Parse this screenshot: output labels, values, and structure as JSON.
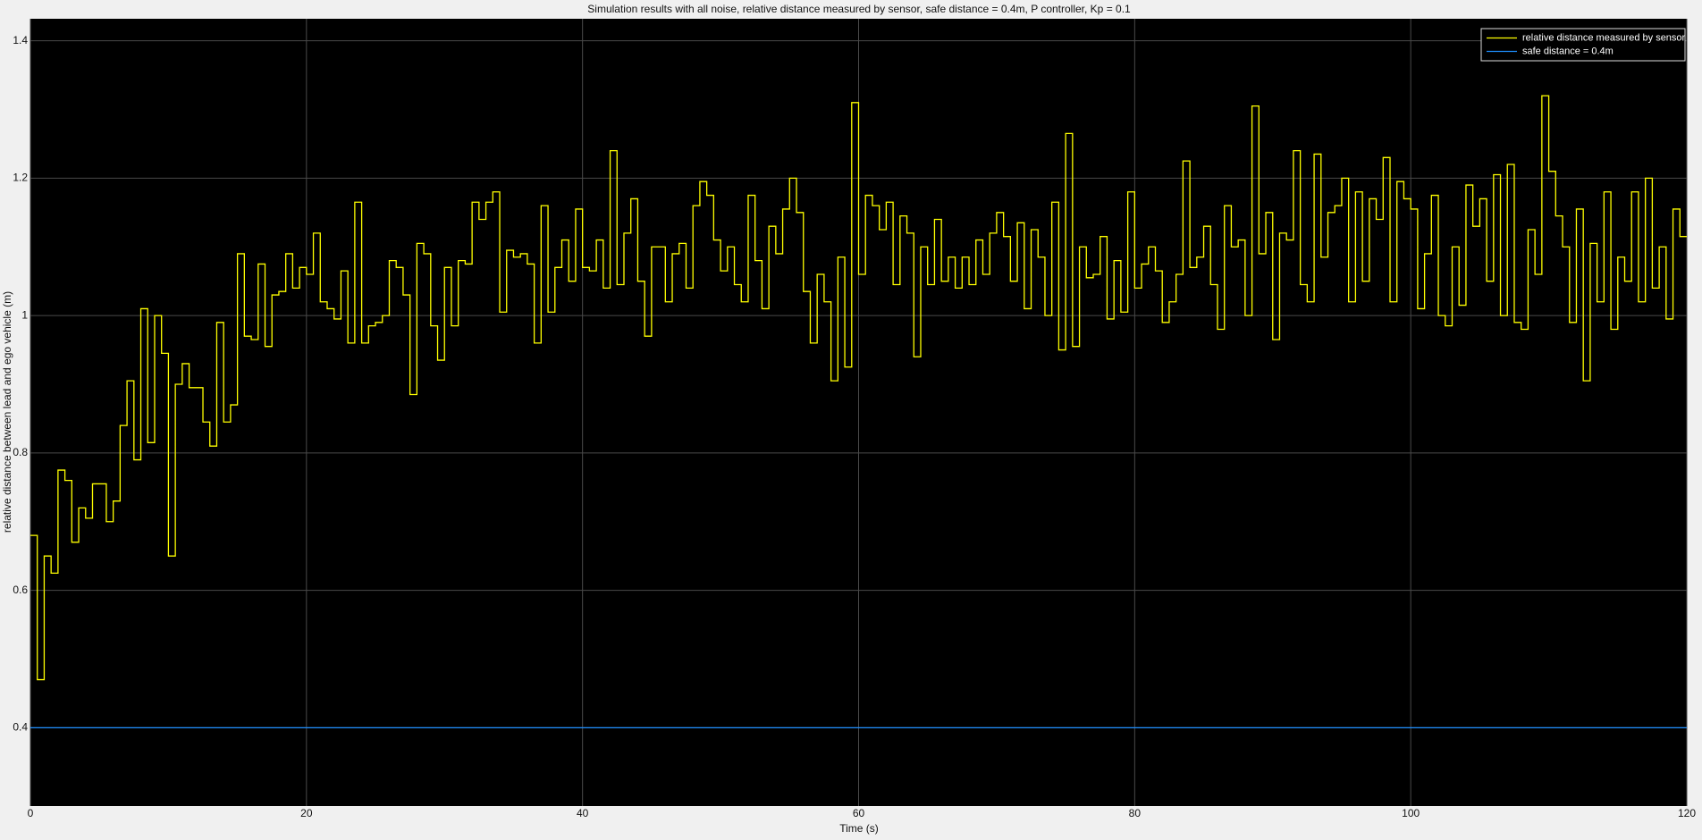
{
  "chart_data": {
    "type": "line",
    "title": "Simulation results with all noise, relative distance measured by sensor, safe distance = 0.4m, P controller, Kp = 0.1",
    "xlabel": "Time (s)",
    "ylabel": "relative distance between lead and ego vehicle (m)",
    "xlim": [
      0,
      120
    ],
    "ylim": [
      0.286,
      1.432
    ],
    "xticks": [
      0,
      20,
      40,
      60,
      80,
      100,
      120
    ],
    "yticks": [
      0.4,
      0.6,
      0.8,
      1,
      1.2,
      1.4
    ],
    "grid": true,
    "legend": "upper right",
    "drawstyle": "steps-post",
    "series": [
      {
        "name": "relative distance measured by sensor",
        "color": "#ffff00",
        "x": [
          0,
          0.5,
          1,
          1.5,
          2,
          2.5,
          3,
          3.5,
          4,
          4.5,
          5,
          5.5,
          6,
          6.5,
          7,
          7.5,
          8,
          8.5,
          9,
          9.5,
          10,
          10.5,
          11,
          11.5,
          12,
          12.5,
          13,
          13.5,
          14,
          14.5,
          15,
          15.5,
          16,
          16.5,
          17,
          17.5,
          18,
          18.5,
          19,
          19.5,
          20,
          20.5,
          21,
          21.5,
          22,
          22.5,
          23,
          23.5,
          24,
          24.5,
          25,
          25.5,
          26,
          26.5,
          27,
          27.5,
          28,
          28.5,
          29,
          29.5,
          30,
          30.5,
          31,
          31.5,
          32,
          32.5,
          33,
          33.5,
          34,
          34.5,
          35,
          35.5,
          36,
          36.5,
          37,
          37.5,
          38,
          38.5,
          39,
          39.5,
          40,
          40.5,
          41,
          41.5,
          42,
          42.5,
          43,
          43.5,
          44,
          44.5,
          45,
          45.5,
          46,
          46.5,
          47,
          47.5,
          48,
          48.5,
          49,
          49.5,
          50,
          50.5,
          51,
          51.5,
          52,
          52.5,
          53,
          53.5,
          54,
          54.5,
          55,
          55.5,
          56,
          56.5,
          57,
          57.5,
          58,
          58.5,
          59,
          59.5,
          60,
          60.5,
          61,
          61.5,
          62,
          62.5,
          63,
          63.5,
          64,
          64.5,
          65,
          65.5,
          66,
          66.5,
          67,
          67.5,
          68,
          68.5,
          69,
          69.5,
          70,
          70.5,
          71,
          71.5,
          72,
          72.5,
          73,
          73.5,
          74,
          74.5,
          75,
          75.5,
          76,
          76.5,
          77,
          77.5,
          78,
          78.5,
          79,
          79.5,
          80,
          80.5,
          81,
          81.5,
          82,
          82.5,
          83,
          83.5,
          84,
          84.5,
          85,
          85.5,
          86,
          86.5,
          87,
          87.5,
          88,
          88.5,
          89,
          89.5,
          90,
          90.5,
          91,
          91.5,
          92,
          92.5,
          93,
          93.5,
          94,
          94.5,
          95,
          95.5,
          96,
          96.5,
          97,
          97.5,
          98,
          98.5,
          99,
          99.5,
          100,
          100.5,
          101,
          101.5,
          102,
          102.5,
          103,
          103.5,
          104,
          104.5,
          105,
          105.5,
          106,
          106.5,
          107,
          107.5,
          108,
          108.5,
          109,
          109.5,
          110,
          110.5,
          111,
          111.5,
          112,
          112.5,
          113,
          113.5,
          114,
          114.5,
          115,
          115.5,
          116,
          116.5,
          117,
          117.5,
          118,
          118.5,
          119,
          119.5
        ],
        "values": [
          0.68,
          0.47,
          0.65,
          0.625,
          0.775,
          0.76,
          0.67,
          0.72,
          0.705,
          0.755,
          0.755,
          0.7,
          0.73,
          0.84,
          0.905,
          0.79,
          1.01,
          0.815,
          1.0,
          0.945,
          0.65,
          0.9,
          0.93,
          0.895,
          0.895,
          0.845,
          0.81,
          0.99,
          0.845,
          0.87,
          1.09,
          0.97,
          0.965,
          1.075,
          0.955,
          1.03,
          1.035,
          1.09,
          1.04,
          1.07,
          1.06,
          1.12,
          1.02,
          1.01,
          0.995,
          1.065,
          0.96,
          1.165,
          0.96,
          0.985,
          0.99,
          1.0,
          1.08,
          1.07,
          1.03,
          0.885,
          1.105,
          1.09,
          0.985,
          0.935,
          1.07,
          0.985,
          1.08,
          1.075,
          1.165,
          1.14,
          1.165,
          1.18,
          1.005,
          1.095,
          1.085,
          1.09,
          1.075,
          0.96,
          1.16,
          1.005,
          1.07,
          1.11,
          1.05,
          1.155,
          1.07,
          1.065,
          1.11,
          1.04,
          1.24,
          1.045,
          1.12,
          1.17,
          1.05,
          0.97,
          1.1,
          1.1,
          1.02,
          1.09,
          1.105,
          1.04,
          1.16,
          1.195,
          1.175,
          1.11,
          1.065,
          1.1,
          1.045,
          1.02,
          1.175,
          1.08,
          1.01,
          1.13,
          1.09,
          1.155,
          1.2,
          1.15,
          1.035,
          0.96,
          1.06,
          1.02,
          0.905,
          1.085,
          0.925,
          1.31,
          1.06,
          1.175,
          1.16,
          1.125,
          1.165,
          1.045,
          1.145,
          1.12,
          0.94,
          1.1,
          1.045,
          1.14,
          1.05,
          1.085,
          1.04,
          1.085,
          1.045,
          1.11,
          1.06,
          1.12,
          1.15,
          1.115,
          1.05,
          1.135,
          1.01,
          1.125,
          1.085,
          1.0,
          1.165,
          0.95,
          1.265,
          0.955,
          1.1,
          1.055,
          1.06,
          1.115,
          0.995,
          1.08,
          1.005,
          1.18,
          1.04,
          1.075,
          1.1,
          1.065,
          0.99,
          1.02,
          1.06,
          1.225,
          1.07,
          1.085,
          1.13,
          1.045,
          0.98,
          1.16,
          1.1,
          1.11,
          1.0,
          1.305,
          1.09,
          1.15,
          0.965,
          1.12,
          1.11,
          1.24,
          1.045,
          1.02,
          1.235,
          1.085,
          1.15,
          1.16,
          1.2,
          1.02,
          1.18,
          1.05,
          1.17,
          1.14,
          1.23,
          1.02,
          1.195,
          1.17,
          1.155,
          1.01,
          1.09,
          1.175,
          1.0,
          0.985,
          1.1,
          1.015,
          1.19,
          1.13,
          1.17,
          1.05,
          1.205,
          1.0,
          1.22,
          0.99,
          0.98,
          1.125,
          1.06,
          1.32,
          1.21,
          1.145,
          1.1,
          0.99,
          1.155,
          0.905,
          1.105,
          1.02,
          1.18,
          0.98,
          1.085,
          1.05,
          1.18,
          1.02,
          1.2,
          1.04,
          1.1,
          0.995,
          1.155,
          1.115
        ]
      },
      {
        "name": "safe distance = 0.4m",
        "color": "#1f8fff",
        "x": [
          0,
          120
        ],
        "values": [
          0.4,
          0.4
        ]
      }
    ]
  }
}
